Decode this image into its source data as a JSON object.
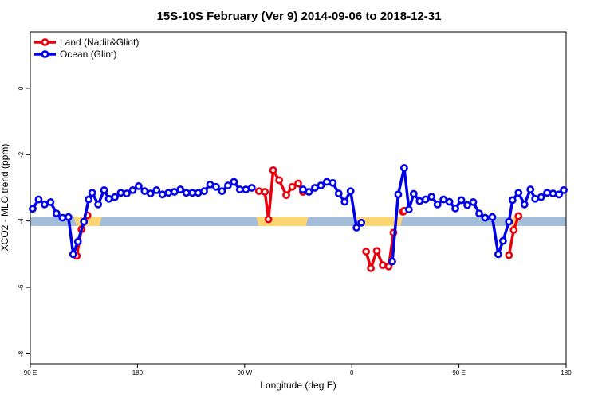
{
  "chart_data": {
    "type": "line",
    "title": "15S-10S February (Ver 9)   2014-09-06 to 2018-12-31",
    "xlabel": "Longitude (deg E)",
    "ylabel": "XCO2 - MLO trend (ppm)",
    "xlim": [
      90,
      540
    ],
    "ylim": [
      -8.3,
      1.7
    ],
    "x_ticks": [
      {
        "value": 90,
        "label": "90 E"
      },
      {
        "value": 180,
        "label": "180"
      },
      {
        "value": 270,
        "label": "90 W"
      },
      {
        "value": 360,
        "label": "0"
      },
      {
        "value": 450,
        "label": "90 E"
      },
      {
        "value": 540,
        "label": "180"
      }
    ],
    "y_ticks": [
      {
        "value": 0,
        "label": "0"
      },
      {
        "value": -2,
        "label": "-2"
      },
      {
        "value": -4,
        "label": "-4"
      },
      {
        "value": -6,
        "label": "-6"
      },
      {
        "value": -8,
        "label": "-8"
      }
    ],
    "grid": false,
    "legend_position": "top-left",
    "surface_band": {
      "y_range": [
        -4.15,
        -3.87
      ],
      "ocean_color": "#a3bcd9",
      "land_color": "#fdd573",
      "land_segments": [
        [
          128.7,
          147.8
        ],
        [
          281.7,
          321.4
        ],
        [
          365.6,
          400.8
        ],
        [
          135.0,
          136.0
        ]
      ],
      "land_segments_extra": [
        [
          132.0,
          148.0
        ],
        [
          492.6,
          499.0
        ]
      ]
    },
    "series": [
      {
        "name": "Land (Nadir&Glint)",
        "color": "#e8000b",
        "segments": [
          [
            [
              129,
              -5.05
            ],
            [
              133,
              -4.25
            ],
            [
              138,
              -3.83
            ]
          ],
          [
            [
              282,
              -3.1
            ],
            [
              287,
              -3.12
            ],
            [
              290,
              -3.95
            ],
            [
              294,
              -2.47
            ],
            [
              299,
              -2.77
            ],
            [
              305,
              -3.22
            ],
            [
              310,
              -2.97
            ],
            [
              315,
              -2.87
            ],
            [
              319,
              -3.12
            ]
          ],
          [
            [
              372,
              -4.92
            ],
            [
              376,
              -5.42
            ],
            [
              381,
              -4.9
            ],
            [
              386,
              -5.33
            ],
            [
              391,
              -5.37
            ],
            [
              395,
              -4.35
            ]
          ],
          [
            [
              403,
              -3.72
            ],
            [
              404,
              -3.69
            ]
          ],
          [
            [
              492,
              -5.03
            ],
            [
              496,
              -4.27
            ],
            [
              500,
              -3.85
            ]
          ]
        ]
      },
      {
        "name": "Ocean (Glint)",
        "color": "#0000e8",
        "segments": [
          [
            [
              92,
              -3.63
            ],
            [
              97,
              -3.35
            ],
            [
              102,
              -3.5
            ],
            [
              107,
              -3.43
            ],
            [
              112,
              -3.77
            ],
            [
              117,
              -3.9
            ],
            [
              122,
              -3.88
            ],
            [
              126,
              -5.0
            ],
            [
              130,
              -4.62
            ],
            [
              135,
              -4.02
            ],
            [
              139,
              -3.35
            ],
            [
              142,
              -3.15
            ],
            [
              147,
              -3.5
            ],
            [
              152,
              -3.07
            ],
            [
              156,
              -3.33
            ],
            [
              161,
              -3.28
            ],
            [
              166,
              -3.15
            ],
            [
              171,
              -3.17
            ],
            [
              176,
              -3.07
            ],
            [
              181,
              -2.95
            ],
            [
              186,
              -3.1
            ],
            [
              191,
              -3.17
            ],
            [
              196,
              -3.07
            ],
            [
              201,
              -3.2
            ],
            [
              206,
              -3.15
            ],
            [
              211,
              -3.12
            ],
            [
              216,
              -3.05
            ],
            [
              221,
              -3.15
            ],
            [
              226,
              -3.15
            ],
            [
              231,
              -3.15
            ],
            [
              236,
              -3.1
            ],
            [
              241,
              -2.9
            ],
            [
              246,
              -2.97
            ],
            [
              251,
              -3.1
            ],
            [
              256,
              -2.93
            ],
            [
              261,
              -2.82
            ],
            [
              266,
              -3.05
            ],
            [
              271,
              -3.05
            ],
            [
              276,
              -3.0
            ]
          ],
          [
            [
              319,
              -3.05
            ],
            [
              324,
              -3.12
            ],
            [
              329,
              -3.0
            ],
            [
              334,
              -2.93
            ],
            [
              339,
              -2.82
            ],
            [
              344,
              -2.85
            ],
            [
              349,
              -3.17
            ],
            [
              354,
              -3.42
            ],
            [
              359,
              -3.1
            ],
            [
              364,
              -4.2
            ],
            [
              368,
              -4.05
            ]
          ],
          [
            [
              394,
              -5.22
            ],
            [
              399,
              -3.2
            ],
            [
              404,
              -2.4
            ],
            [
              408,
              -3.65
            ],
            [
              412,
              -3.18
            ],
            [
              417,
              -3.4
            ],
            [
              422,
              -3.35
            ],
            [
              427,
              -3.27
            ],
            [
              432,
              -3.5
            ],
            [
              437,
              -3.35
            ],
            [
              442,
              -3.42
            ],
            [
              447,
              -3.62
            ],
            [
              452,
              -3.37
            ],
            [
              457,
              -3.52
            ],
            [
              462,
              -3.43
            ],
            [
              467,
              -3.77
            ],
            [
              472,
              -3.9
            ],
            [
              478,
              -3.88
            ],
            [
              483,
              -5.0
            ],
            [
              487,
              -4.6
            ],
            [
              492,
              -4.02
            ],
            [
              495,
              -3.37
            ],
            [
              500,
              -3.15
            ],
            [
              505,
              -3.5
            ],
            [
              510,
              -3.05
            ],
            [
              514,
              -3.33
            ],
            [
              519,
              -3.28
            ],
            [
              524,
              -3.15
            ],
            [
              529,
              -3.17
            ],
            [
              534,
              -3.2
            ],
            [
              538,
              -3.07
            ]
          ]
        ]
      }
    ]
  }
}
